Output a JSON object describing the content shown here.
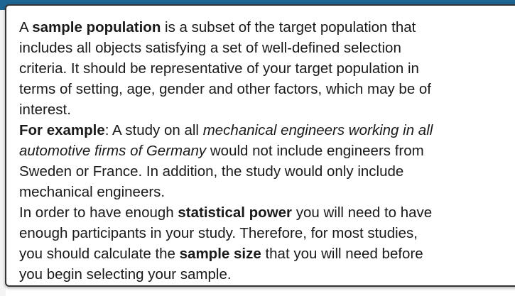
{
  "popup": {
    "paragraphs": [
      {
        "lines": [
          [
            {
              "text": "A "
            },
            {
              "text": "sample population",
              "bold": true
            },
            {
              "text": " is a subset of the target population that"
            }
          ],
          [
            {
              "text": "includes all objects satisfying a set of well-defined selection"
            }
          ],
          [
            {
              "text": "criteria. It should be representative of your target population in"
            }
          ],
          [
            {
              "text": "terms of setting, age, gender and other factors, which may be of"
            }
          ],
          [
            {
              "text": "interest."
            }
          ]
        ]
      },
      {
        "lines": [
          [
            {
              "text": "For example",
              "bold": true
            },
            {
              "text": ": A study on all "
            },
            {
              "text": "mechanical engineers working in all",
              "italic": true
            }
          ],
          [
            {
              "text": "automotive firms of Germany",
              "italic": true
            },
            {
              "text": " would not include engineers from"
            }
          ],
          [
            {
              "text": "Sweden or France. In addition, the study would only include"
            }
          ],
          [
            {
              "text": "mechanical engineers."
            }
          ]
        ]
      },
      {
        "lines": [
          [
            {
              "text": "In order to have enough "
            },
            {
              "text": "statistical power",
              "bold": true
            },
            {
              "text": " you will need to have"
            }
          ],
          [
            {
              "text": "enough participants in your study. Therefore, for most studies,"
            }
          ],
          [
            {
              "text": "you should calculate the "
            },
            {
              "text": "sample size",
              "bold": true
            },
            {
              "text": " that you will need before"
            }
          ],
          [
            {
              "text": "you begin selecting your sample."
            }
          ]
        ]
      }
    ]
  }
}
